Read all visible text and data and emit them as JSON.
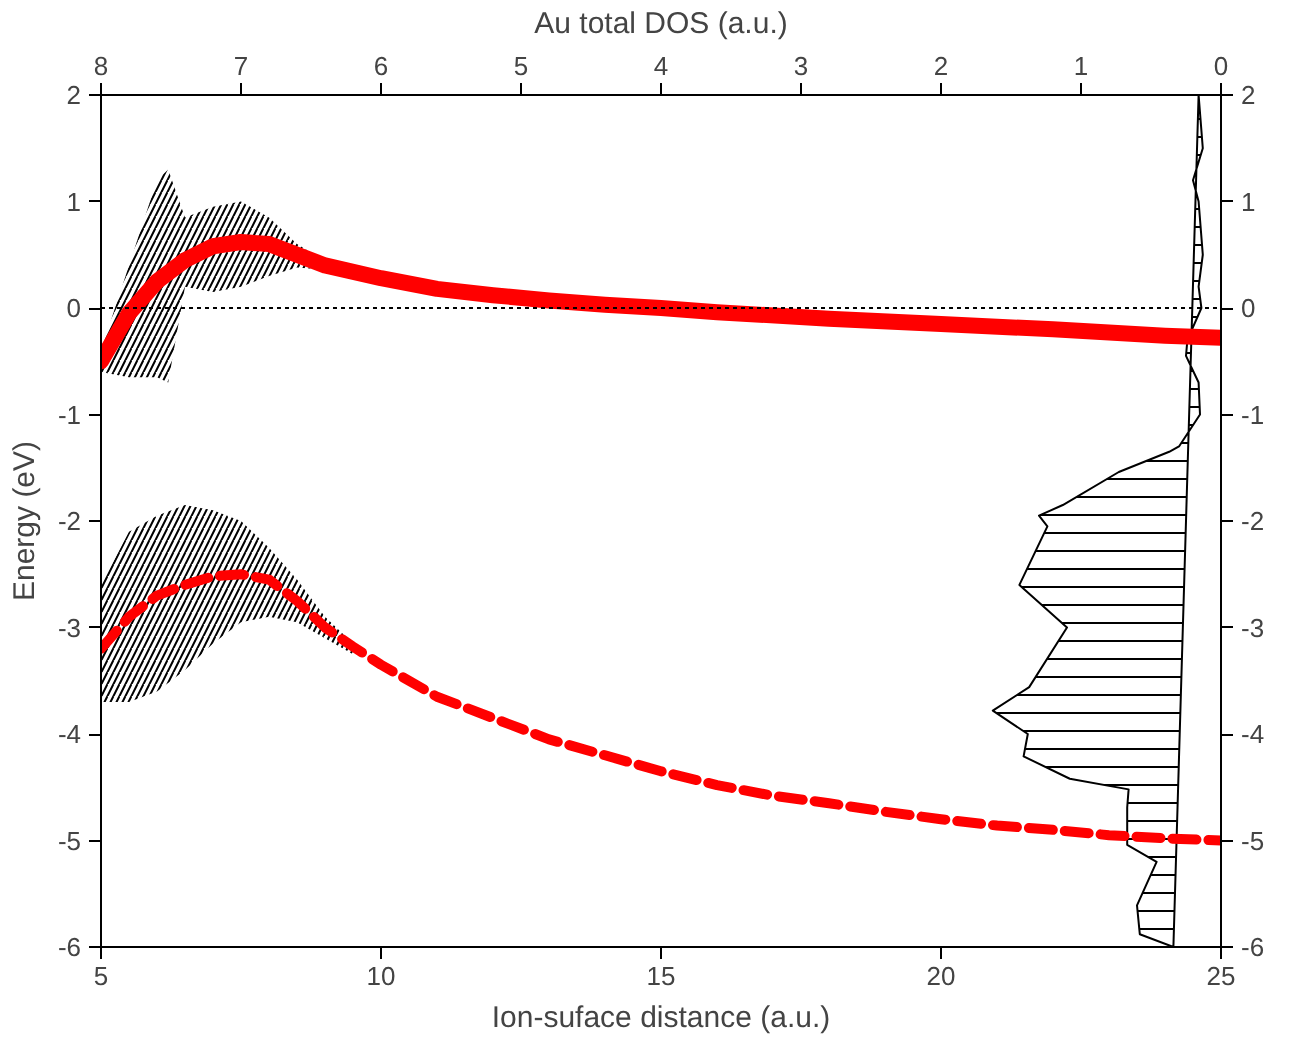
{
  "chart_data": {
    "type": "line",
    "xlabel": "Ion-suface distance (a.u.)",
    "ylabel": "Energy (eV)",
    "x2label": "Au total DOS (a.u.)",
    "xlim": [
      5,
      25
    ],
    "xticks": [
      5,
      10,
      15,
      20,
      25
    ],
    "ylim": [
      -6,
      2
    ],
    "yticks": [
      -6,
      -5,
      -4,
      -3,
      -2,
      -1,
      0,
      1,
      2
    ],
    "y2lim": [
      -6,
      2
    ],
    "y2ticks": [
      -6,
      -5,
      -4,
      -3,
      -2,
      -1,
      0,
      1,
      2
    ],
    "x2lim": [
      8,
      0
    ],
    "x2ticks": [
      8,
      7,
      6,
      5,
      4,
      3,
      2,
      1,
      0
    ],
    "grid": false,
    "marker": "none",
    "ref_lines": [
      {
        "axis": "y",
        "value": 0,
        "line_style": "dotted",
        "color": "#000000"
      }
    ],
    "series": [
      {
        "color": "#ff0000",
        "line_style": "solid",
        "x": [
          5,
          5.5,
          6,
          6.2,
          6.5,
          7,
          7.5,
          8,
          8.5,
          9,
          10,
          11,
          12,
          13,
          14,
          15,
          16,
          18,
          20,
          22,
          24,
          25
        ],
        "values": [
          -0.5,
          -0.05,
          0.25,
          0.33,
          0.45,
          0.58,
          0.62,
          0.6,
          0.5,
          0.4,
          0.28,
          0.18,
          0.12,
          0.07,
          0.03,
          0,
          -0.04,
          -0.1,
          -0.15,
          -0.2,
          -0.26,
          -0.28
        ],
        "lower": [
          -0.6,
          -0.65,
          -0.65,
          -0.7,
          0.2,
          0.15,
          0.2,
          0.3,
          0.38,
          0.36,
          null,
          null,
          null,
          null,
          null,
          null,
          null,
          null,
          null,
          null,
          null,
          null
        ],
        "upper": [
          -0.4,
          0.4,
          1.2,
          1.3,
          0.85,
          0.95,
          1.0,
          0.85,
          0.6,
          0.44,
          null,
          null,
          null,
          null,
          null,
          null,
          null,
          null,
          null,
          null,
          null,
          null
        ]
      },
      {
        "color": "#ff0000",
        "line_style": "dashed",
        "x": [
          5,
          5.5,
          6,
          6.5,
          7,
          7.5,
          8,
          8.5,
          9,
          9.5,
          10,
          11,
          12,
          13,
          14,
          15,
          16,
          17,
          18,
          19,
          20,
          21,
          22,
          23,
          24,
          25
        ],
        "values": [
          -3.2,
          -2.9,
          -2.7,
          -2.6,
          -2.52,
          -2.5,
          -2.55,
          -2.75,
          -3.0,
          -3.18,
          -3.35,
          -3.65,
          -3.85,
          -4.05,
          -4.2,
          -4.35,
          -4.48,
          -4.58,
          -4.65,
          -4.73,
          -4.8,
          -4.86,
          -4.9,
          -4.95,
          -4.98,
          -5.0
        ],
        "lower": [
          -3.7,
          -3.7,
          -3.6,
          -3.4,
          -3.15,
          -2.95,
          -2.9,
          -2.95,
          -3.1,
          -3.25,
          null,
          null,
          null,
          null,
          null,
          null,
          null,
          null,
          null,
          null,
          null,
          null,
          null,
          null,
          null,
          null
        ],
        "upper": [
          -2.6,
          -2.1,
          -1.95,
          -1.85,
          -1.9,
          -2.0,
          -2.25,
          -2.55,
          -2.9,
          -3.15,
          null,
          null,
          null,
          null,
          null,
          null,
          null,
          null,
          null,
          null,
          null,
          null,
          null,
          null,
          null,
          null
        ]
      },
      {
        "type": "area",
        "axis": "x2",
        "color": "#000000",
        "values": [
          2,
          1.5,
          1.2,
          1.0,
          0.5,
          0.2,
          0,
          -0.3,
          -0.45,
          -0.7,
          -1,
          -1.3,
          -1.35,
          -1.54,
          -1.85,
          -1.95,
          -2.05,
          -2.6,
          -3.0,
          -3.56,
          -3.78,
          -4.0,
          -4.21,
          -4.42,
          -4.52,
          -4.69,
          -5.04,
          -5.2,
          -5.61,
          -5.88,
          -6
        ],
        "x": [
          0.16,
          0.13,
          0.2,
          0.16,
          0.13,
          0.16,
          0.14,
          0.24,
          0.25,
          0.16,
          0.15,
          0.3,
          0.37,
          0.73,
          1.13,
          1.3,
          1.24,
          1.44,
          1.1,
          1.37,
          1.63,
          1.38,
          1.41,
          1.08,
          0.66,
          0.67,
          0.67,
          0.46,
          0.6,
          0.58,
          0.34
        ]
      }
    ]
  }
}
